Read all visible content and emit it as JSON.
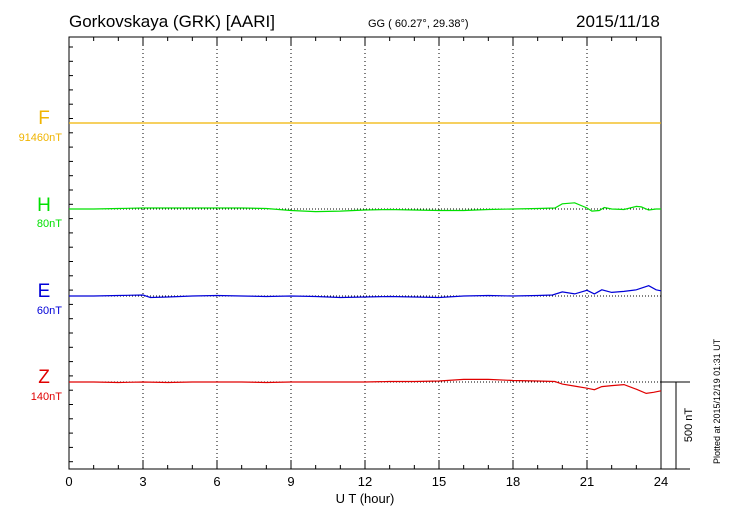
{
  "header": {
    "station": "Gorkovskaya (GRK)  [AARI]",
    "coords": "GG ( 60.27°,  29.38°)",
    "date": "2015/11/18"
  },
  "footer": {
    "plotted": "Plotted at 2015/12/19 01:31  UT"
  },
  "chart_data": {
    "type": "line",
    "xlabel": "U T (hour)",
    "xlim": [
      0,
      24
    ],
    "xticks": [
      "0",
      "3",
      "6",
      "9",
      "12",
      "15",
      "18",
      "21",
      "24"
    ],
    "scale_bar_label": "500 nT",
    "grid": "dotted vertical at 3-hour intervals",
    "channels": [
      {
        "name": "F",
        "scale": "91460nT",
        "color": "#f0b400",
        "baseline_offset_nT": 0,
        "points": [
          [
            0,
            0
          ],
          [
            24,
            0
          ]
        ]
      },
      {
        "name": "H",
        "scale": "80nT",
        "color": "#00e000",
        "points": [
          [
            0,
            0
          ],
          [
            1,
            0
          ],
          [
            2,
            1
          ],
          [
            3,
            2
          ],
          [
            4,
            2
          ],
          [
            5,
            2
          ],
          [
            6,
            2
          ],
          [
            7,
            2
          ],
          [
            8,
            1
          ],
          [
            8.5,
            -1
          ],
          [
            9,
            -3
          ],
          [
            10,
            -5
          ],
          [
            11,
            -4
          ],
          [
            12,
            -2
          ],
          [
            13,
            -1
          ],
          [
            14,
            -2
          ],
          [
            15,
            -3
          ],
          [
            16,
            -3
          ],
          [
            17,
            -1
          ],
          [
            18,
            0
          ],
          [
            19,
            1
          ],
          [
            19.7,
            2
          ],
          [
            20,
            10
          ],
          [
            20.5,
            12
          ],
          [
            21,
            2
          ],
          [
            21.2,
            -4
          ],
          [
            21.5,
            -3
          ],
          [
            21.7,
            3
          ],
          [
            22,
            0
          ],
          [
            22.5,
            -1
          ],
          [
            23,
            5
          ],
          [
            23.2,
            4
          ],
          [
            23.5,
            -2
          ],
          [
            23.8,
            0
          ],
          [
            24,
            0
          ]
        ]
      },
      {
        "name": "E",
        "scale": "60nT",
        "color": "#0000d8",
        "points": [
          [
            0,
            0
          ],
          [
            1,
            0
          ],
          [
            2,
            1
          ],
          [
            3,
            2
          ],
          [
            3.3,
            -3
          ],
          [
            4,
            -2
          ],
          [
            5,
            0
          ],
          [
            6,
            1
          ],
          [
            7,
            0
          ],
          [
            8,
            -1
          ],
          [
            9,
            0
          ],
          [
            10,
            -1
          ],
          [
            11,
            -3
          ],
          [
            12,
            -2
          ],
          [
            13,
            -1
          ],
          [
            14,
            -2
          ],
          [
            15,
            -3
          ],
          [
            16,
            0
          ],
          [
            17,
            1
          ],
          [
            18,
            0
          ],
          [
            19,
            1
          ],
          [
            19.6,
            2
          ],
          [
            20,
            8
          ],
          [
            20.5,
            4
          ],
          [
            21,
            11
          ],
          [
            21.3,
            4
          ],
          [
            21.6,
            12
          ],
          [
            22,
            7
          ],
          [
            22.5,
            9
          ],
          [
            23,
            12
          ],
          [
            23.5,
            20
          ],
          [
            23.8,
            12
          ],
          [
            24,
            10
          ]
        ]
      },
      {
        "name": "Z",
        "scale": "140nT",
        "color": "#e00000",
        "points": [
          [
            0,
            0
          ],
          [
            1,
            0
          ],
          [
            2,
            -1
          ],
          [
            3,
            0
          ],
          [
            4,
            -1
          ],
          [
            5,
            0
          ],
          [
            6,
            0
          ],
          [
            7,
            0
          ],
          [
            8,
            -1
          ],
          [
            9,
            0
          ],
          [
            10,
            0
          ],
          [
            11,
            0
          ],
          [
            12,
            0
          ],
          [
            13,
            1
          ],
          [
            14,
            1
          ],
          [
            15,
            2
          ],
          [
            16,
            5
          ],
          [
            17,
            5
          ],
          [
            18,
            3
          ],
          [
            19,
            2
          ],
          [
            19.7,
            1
          ],
          [
            20,
            -4
          ],
          [
            20.5,
            -8
          ],
          [
            21,
            -12
          ],
          [
            21.3,
            -15
          ],
          [
            21.6,
            -9
          ],
          [
            22,
            -7
          ],
          [
            22.5,
            -5
          ],
          [
            23,
            -14
          ],
          [
            23.4,
            -22
          ],
          [
            23.7,
            -20
          ],
          [
            24,
            -17
          ]
        ]
      }
    ]
  }
}
